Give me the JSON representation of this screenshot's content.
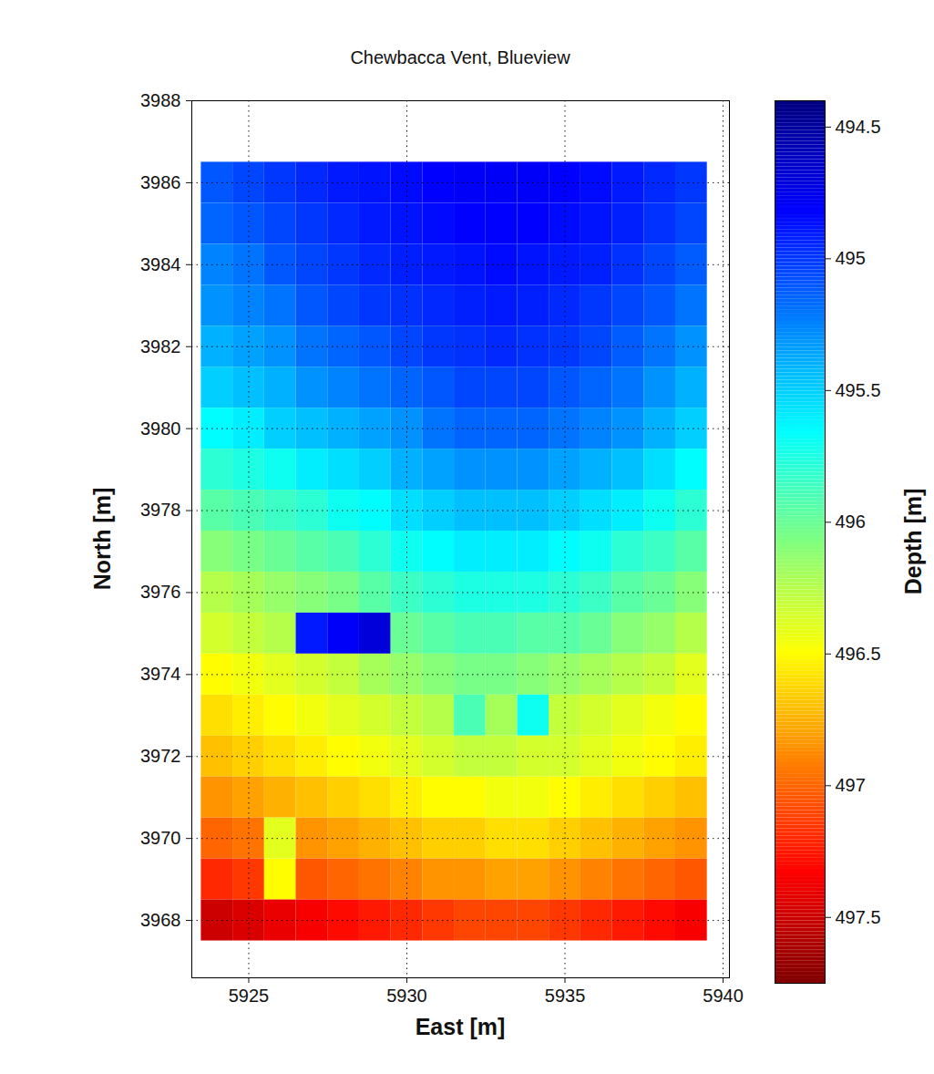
{
  "chart_data": {
    "type": "heatmap",
    "title": "Chewbacca Vent, Blueview",
    "x_label": "East [m]",
    "y_label": "North [m]",
    "x": [
      5924,
      5925,
      5926,
      5927,
      5928,
      5929,
      5930,
      5931,
      5932,
      5933,
      5934,
      5935,
      5936,
      5937,
      5938,
      5939
    ],
    "y": [
      3986,
      3985,
      3984,
      3983,
      3982,
      3981,
      3980,
      3979,
      3978,
      3977,
      3976,
      3975,
      3974,
      3973,
      3972,
      3971,
      3970,
      3969,
      3968
    ],
    "values": [
      [
        495.1,
        495.05,
        495.0,
        494.95,
        494.9,
        494.88,
        494.85,
        494.82,
        494.8,
        494.8,
        494.8,
        494.82,
        494.85,
        494.9,
        494.95,
        495.0
      ],
      [
        495.15,
        495.1,
        495.05,
        495.0,
        494.95,
        494.9,
        494.88,
        494.85,
        494.82,
        494.82,
        494.82,
        494.85,
        494.88,
        494.92,
        494.98,
        495.05
      ],
      [
        495.25,
        495.2,
        495.1,
        495.05,
        495.0,
        494.95,
        494.92,
        494.9,
        494.88,
        494.85,
        494.88,
        494.9,
        494.92,
        494.98,
        495.05,
        495.12
      ],
      [
        495.3,
        495.25,
        495.2,
        495.1,
        495.05,
        495.0,
        494.98,
        494.95,
        494.92,
        494.9,
        494.92,
        494.95,
        495.0,
        495.05,
        495.1,
        495.2
      ],
      [
        495.4,
        495.35,
        495.3,
        495.2,
        495.15,
        495.1,
        495.05,
        495.0,
        494.98,
        494.95,
        494.98,
        495.0,
        495.05,
        495.12,
        495.2,
        495.3
      ],
      [
        495.5,
        495.45,
        495.4,
        495.3,
        495.25,
        495.2,
        495.15,
        495.1,
        495.05,
        495.05,
        495.05,
        495.1,
        495.15,
        495.2,
        495.3,
        495.4
      ],
      [
        495.65,
        495.6,
        495.5,
        495.45,
        495.4,
        495.35,
        495.3,
        495.2,
        495.15,
        495.15,
        495.15,
        495.2,
        495.25,
        495.3,
        495.4,
        495.5
      ],
      [
        495.8,
        495.75,
        495.7,
        495.6,
        495.55,
        495.5,
        495.4,
        495.35,
        495.3,
        495.3,
        495.3,
        495.35,
        495.4,
        495.45,
        495.55,
        495.65
      ],
      [
        495.95,
        495.9,
        495.85,
        495.8,
        495.7,
        495.65,
        495.55,
        495.5,
        495.45,
        495.45,
        495.45,
        495.5,
        495.55,
        495.6,
        495.7,
        495.8
      ],
      [
        496.1,
        496.05,
        496.0,
        495.95,
        495.9,
        495.8,
        495.7,
        495.65,
        495.6,
        495.6,
        495.6,
        495.65,
        495.7,
        495.8,
        495.85,
        495.95
      ],
      [
        496.25,
        496.2,
        496.15,
        496.1,
        496.05,
        495.95,
        495.85,
        495.8,
        495.75,
        495.75,
        495.75,
        495.8,
        495.85,
        495.95,
        496.0,
        496.1
      ],
      [
        496.35,
        496.3,
        496.25,
        494.9,
        494.8,
        494.7,
        496.0,
        495.95,
        495.9,
        495.9,
        495.95,
        495.95,
        496.0,
        496.1,
        496.15,
        496.25
      ],
      [
        496.5,
        496.45,
        496.4,
        496.35,
        496.3,
        496.2,
        496.15,
        496.1,
        496.05,
        496.05,
        496.1,
        496.15,
        496.2,
        496.25,
        496.3,
        496.4
      ],
      [
        496.6,
        496.55,
        496.5,
        496.45,
        496.4,
        496.35,
        496.3,
        496.25,
        495.9,
        496.2,
        495.7,
        496.3,
        496.35,
        496.4,
        496.45,
        496.5
      ],
      [
        496.7,
        496.65,
        496.6,
        496.55,
        496.5,
        496.45,
        496.4,
        496.35,
        496.3,
        496.3,
        496.35,
        496.35,
        496.4,
        496.45,
        496.5,
        496.55
      ],
      [
        496.85,
        496.8,
        496.75,
        496.7,
        496.65,
        496.6,
        496.55,
        496.5,
        496.5,
        496.45,
        496.45,
        496.5,
        496.55,
        496.6,
        496.65,
        496.7
      ],
      [
        497.0,
        496.95,
        496.4,
        496.85,
        496.8,
        496.75,
        496.7,
        496.65,
        496.65,
        496.6,
        496.6,
        496.65,
        496.7,
        496.75,
        496.8,
        496.85
      ],
      [
        497.2,
        497.15,
        496.5,
        497.05,
        497.0,
        496.95,
        496.9,
        496.85,
        496.85,
        496.8,
        496.8,
        496.85,
        496.9,
        496.95,
        497.0,
        497.05
      ],
      [
        497.5,
        497.45,
        497.4,
        497.35,
        497.3,
        497.25,
        497.2,
        497.15,
        497.1,
        497.1,
        497.1,
        497.15,
        497.2,
        497.25,
        497.3,
        497.35
      ]
    ],
    "xlim": [
      5923.2,
      5940.2
    ],
    "xticks": [
      5925,
      5930,
      5935,
      5940
    ],
    "ylim": [
      3966.6,
      3988
    ],
    "yticks": [
      3968,
      3970,
      3972,
      3974,
      3976,
      3978,
      3980,
      3982,
      3984,
      3986,
      3988
    ],
    "grid": true,
    "colorbar": {
      "label": "Depth [m]",
      "lim": [
        494.4,
        497.75
      ],
      "ticks": [
        494.5,
        495,
        495.5,
        496,
        496.5,
        497,
        497.5
      ]
    }
  }
}
